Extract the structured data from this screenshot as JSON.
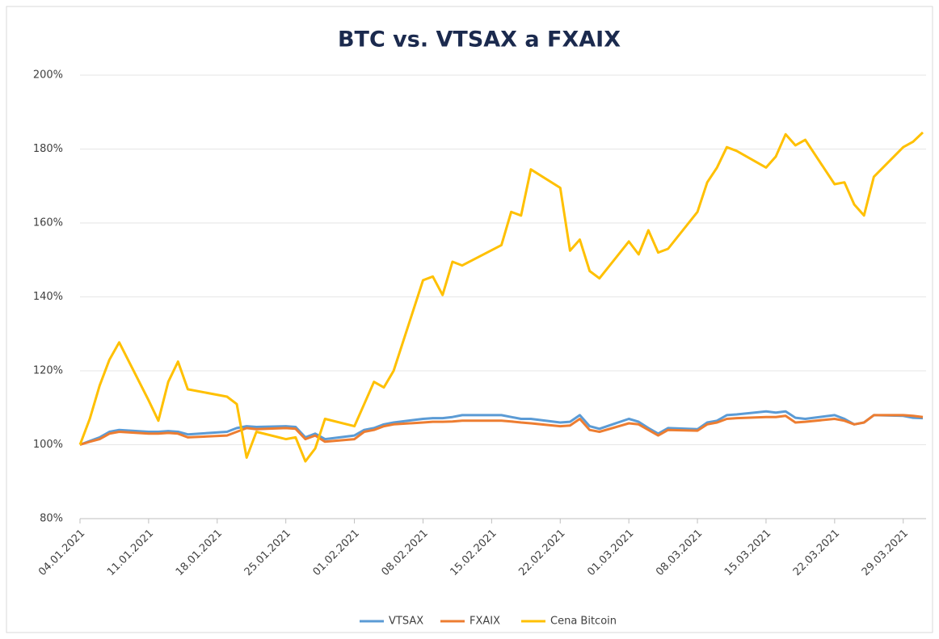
{
  "chart_data": {
    "type": "line",
    "title": "BTC vs. VTSAX a FXAIX",
    "x": [
      "04.01.2021",
      "05.01.2021",
      "06.01.2021",
      "07.01.2021",
      "08.01.2021",
      "11.01.2021",
      "12.01.2021",
      "13.01.2021",
      "14.01.2021",
      "15.01.2021",
      "19.01.2021",
      "20.01.2021",
      "21.01.2021",
      "22.01.2021",
      "25.01.2021",
      "26.01.2021",
      "27.01.2021",
      "28.01.2021",
      "29.01.2021",
      "01.02.2021",
      "02.02.2021",
      "03.02.2021",
      "04.02.2021",
      "05.02.2021",
      "08.02.2021",
      "09.02.2021",
      "10.02.2021",
      "11.02.2021",
      "12.02.2021",
      "16.02.2021",
      "17.02.2021",
      "18.02.2021",
      "19.02.2021",
      "22.02.2021",
      "23.02.2021",
      "24.02.2021",
      "25.02.2021",
      "26.02.2021",
      "01.03.2021",
      "02.03.2021",
      "03.03.2021",
      "04.03.2021",
      "05.03.2021",
      "08.03.2021",
      "09.03.2021",
      "10.03.2021",
      "11.03.2021",
      "12.03.2021",
      "15.03.2021",
      "16.03.2021",
      "17.03.2021",
      "18.03.2021",
      "19.03.2021",
      "22.03.2021",
      "23.03.2021",
      "24.03.2021",
      "25.03.2021",
      "26.03.2021",
      "29.03.2021",
      "30.03.2021",
      "31.03.2021"
    ],
    "series": [
      {
        "name": "VTSAX",
        "color": "#5b9bd5",
        "values": [
          100,
          101,
          102,
          103.5,
          104,
          103.5,
          103.5,
          103.7,
          103.5,
          102.8,
          103.5,
          104.5,
          105,
          104.8,
          105,
          104.8,
          102,
          103,
          101.5,
          102.5,
          104,
          104.5,
          105.5,
          106,
          107,
          107.2,
          107.2,
          107.5,
          108,
          108,
          107.5,
          107,
          107,
          106,
          106.2,
          108,
          105,
          104.3,
          107,
          106.2,
          104.5,
          103,
          104.5,
          104.2,
          106,
          106.5,
          108,
          108.2,
          109,
          108.7,
          109,
          107.3,
          107,
          108,
          107,
          105.5,
          106,
          108,
          107.8,
          107.3,
          107.2
        ]
      },
      {
        "name": "FXAIX",
        "color": "#ed7d31",
        "values": [
          100,
          100.8,
          101.5,
          103,
          103.5,
          103,
          103,
          103.2,
          103,
          102,
          102.5,
          103.5,
          104.5,
          104.2,
          104.5,
          104.3,
          101.5,
          102.5,
          100.8,
          101.5,
          103.5,
          104,
          105,
          105.5,
          106,
          106.2,
          106.2,
          106.3,
          106.5,
          106.5,
          106.3,
          106,
          105.8,
          105,
          105.2,
          107,
          104,
          103.5,
          105.8,
          105.5,
          104,
          102.5,
          104,
          103.8,
          105.5,
          106,
          107,
          107.2,
          107.5,
          107.5,
          107.8,
          106,
          106.2,
          107,
          106.5,
          105.5,
          106,
          108,
          108,
          107.8,
          107.5
        ]
      },
      {
        "name": "Cena Bitcoin",
        "color": "#ffc000",
        "values": [
          100,
          107,
          116,
          123,
          127.7,
          112,
          106.5,
          117,
          122.5,
          115,
          113,
          111,
          96.5,
          103.5,
          101.5,
          102,
          95.5,
          99,
          107,
          105,
          111,
          117,
          115.5,
          120,
          144.5,
          145.5,
          140.5,
          149.5,
          148.5,
          154,
          163,
          162,
          174.5,
          169.5,
          152.5,
          155.5,
          147,
          145,
          155,
          151.5,
          158,
          152,
          153,
          163,
          171,
          175,
          180.5,
          179.5,
          175,
          178,
          184,
          181,
          182.5,
          170.5,
          171,
          165,
          162,
          172.5,
          180.5,
          182,
          184.5
        ]
      }
    ],
    "xlim": [
      "04.01.2021",
      "31.03.2021"
    ],
    "xticks": [
      "04.01.2021",
      "11.01.2021",
      "18.01.2021",
      "25.01.2021",
      "01.02.2021",
      "08.02.2021",
      "15.02.2021",
      "22.02.2021",
      "01.03.2021",
      "08.03.2021",
      "15.03.2021",
      "22.03.2021",
      "29.03.2021"
    ],
    "ylim": [
      80,
      200
    ],
    "yticks": [
      {
        "value": 80,
        "label": "80%"
      },
      {
        "value": 100,
        "label": "100%"
      },
      {
        "value": 120,
        "label": "120%"
      },
      {
        "value": 140,
        "label": "140%"
      },
      {
        "value": 160,
        "label": "160%"
      },
      {
        "value": 180,
        "label": "180%"
      },
      {
        "value": 200,
        "label": "200%"
      }
    ],
    "grid": true,
    "legend": "bottom"
  }
}
